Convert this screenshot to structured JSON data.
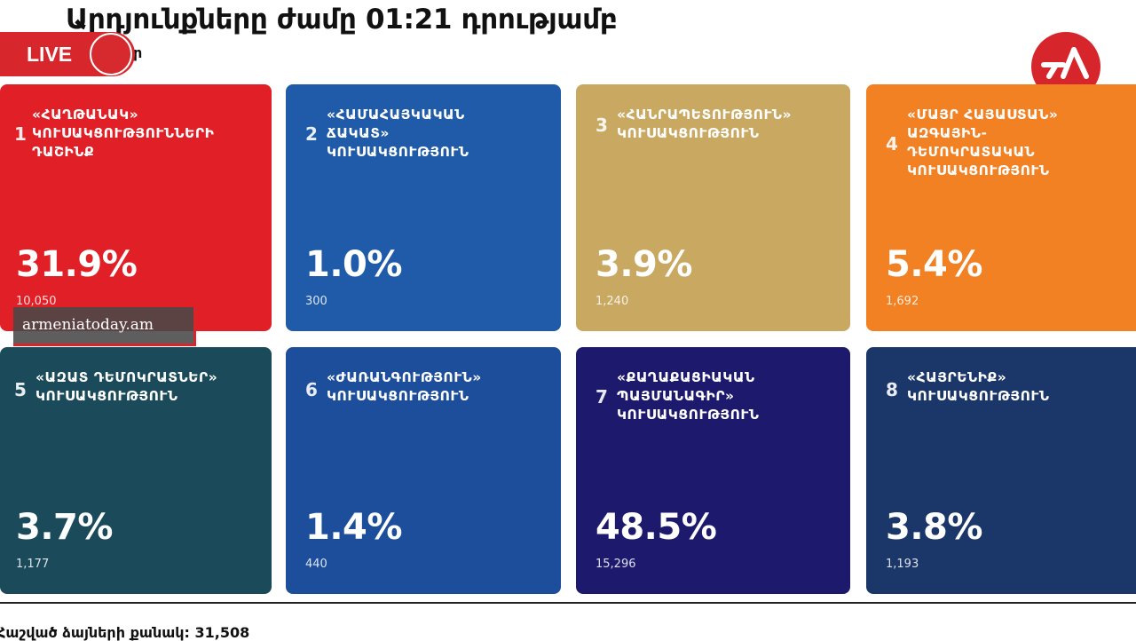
{
  "header": {
    "title": "Արդյունքները ժամը 01:21 դրությամբ",
    "subtitle": "ր"
  },
  "live": {
    "label": "LIVE",
    "color": "#d7272c"
  },
  "logo": {
    "icon": "news-logo-icon",
    "color": "#d7262b"
  },
  "watermark": {
    "text": "armeniatoday.am"
  },
  "cards": [
    {
      "num": "1",
      "name": "«ՀԱՂԹԱՆԱԿ»\nԿՈՒՍԱԿՑՈՒԹՅՈՒՆՆԵՐԻ\nԴԱՇԻՆՔ",
      "percent": "31.9%",
      "votes": "10,050",
      "color": "#e11f26"
    },
    {
      "num": "2",
      "name": "«ՀԱՄԱՀԱՅԿԱԿԱՆ\nՃԱԿԱՏ»\nԿՈՒՍԱԿՑՈՒԹՅՈՒՆ",
      "percent": "1.0%",
      "votes": "300",
      "color": "#1f5ba8"
    },
    {
      "num": "3",
      "name": "«ՀԱՆՐԱՊԵՏՈՒԹՅՈՒՆ»\nԿՈՒՍԱԿՑՈՒԹՅՈՒՆ",
      "percent": "3.9%",
      "votes": "1,240",
      "color": "#c9a862"
    },
    {
      "num": "4",
      "name": "«ՄԱՅՐ ՀԱՅԱՍՏԱՆ»\nԱԶԳԱՅԻՆ-\nԴԵՄՈԿՐԱՏԱԿԱՆ\nԿՈՒՍԱԿՑՈՒԹՅՈՒՆ",
      "percent": "5.4%",
      "votes": "1,692",
      "color": "#f28124"
    },
    {
      "num": "5",
      "name": "«ԱԶԱՏ ԴԵՄՈԿՐԱՏՆԵՐ»\nԿՈՒՍԱԿՑՈՒԹՅՈՒՆ",
      "percent": "3.7%",
      "votes": "1,177",
      "color": "#1b4b5a"
    },
    {
      "num": "6",
      "name": "«ԺԱՌԱՆԳՈՒԹՅՈՒՆ»\nԿՈՒՍԱԿՑՈՒԹՅՈՒՆ",
      "percent": "1.4%",
      "votes": "440",
      "color": "#1d4e9b"
    },
    {
      "num": "7",
      "name": "«ՔԱՂԱՔԱՑԻԱԿԱՆ\nՊԱՅՄԱՆԱԳԻՐ»\nԿՈՒՍԱԿՑՈՒԹՅՈՒՆ",
      "percent": "48.5%",
      "votes": "15,296",
      "color": "#1d1a6e"
    },
    {
      "num": "8",
      "name": "«ՀԱՅՐԵՆԻՔ»\nԿՈՒՍԱԿՑՈՒԹՅՈՒՆ",
      "percent": "3.8%",
      "votes": "1,193",
      "color": "#1b3769"
    }
  ],
  "footer": {
    "total": "Հաշված ձայների քանակ: 31,508"
  }
}
